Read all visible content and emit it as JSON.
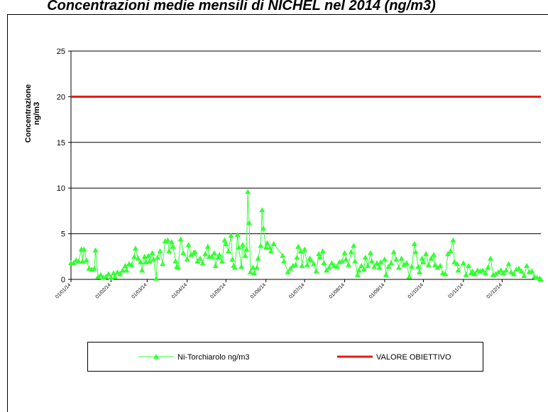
{
  "chart_data": {
    "type": "line",
    "title": "Concentrazioni medie mensili di NICHEL nel 2014 (ng/m3)",
    "ylabel": "Concentrazione ng/m3",
    "xlim": [
      "01/01/14",
      "31/12/14"
    ],
    "xticks": [
      "01/01/14",
      "01/02/14",
      "01/03/14",
      "01/04/14",
      "01/05/14",
      "01/06/14",
      "01/07/14",
      "01/08/14",
      "01/09/14",
      "01/10/14",
      "01/11/14",
      "01/12/14"
    ],
    "ylim": [
      0,
      25
    ],
    "yticks": [
      0,
      5,
      10,
      15,
      20,
      25
    ],
    "grid": true,
    "series": [
      {
        "name": "Ni-Torchiarolo ng/m3",
        "color": "#33ff33",
        "marker": "triangle",
        "x": [
          "01/01/14",
          "03/01/14",
          "05/01/14",
          "07/01/14",
          "09/01/14",
          "10/01/14",
          "11/01/14",
          "13/01/14",
          "15/01/14",
          "17/01/14",
          "19/01/14",
          "20/01/14",
          "22/01/14",
          "24/01/14",
          "26/01/14",
          "28/01/14",
          "30/01/14",
          "01/02/14",
          "03/02/14",
          "04/02/14",
          "06/02/14",
          "08/02/14",
          "10/02/14",
          "12/02/14",
          "13/02/14",
          "15/02/14",
          "17/02/14",
          "19/02/14",
          "20/02/14",
          "22/02/14",
          "24/02/14",
          "25/02/14",
          "27/02/14",
          "28/02/14",
          "02/03/14",
          "03/03/14",
          "05/03/14",
          "06/03/14",
          "08/03/14",
          "09/03/14",
          "11/03/14",
          "13/03/14",
          "15/03/14",
          "17/03/14",
          "18/03/14",
          "20/03/14",
          "21/03/14",
          "23/03/14",
          "24/03/14",
          "25/03/14",
          "27/03/14",
          "29/03/14",
          "01/04/14",
          "02/04/14",
          "04/04/14",
          "06/04/14",
          "07/04/14",
          "09/04/14",
          "11/04/14",
          "13/04/14",
          "15/04/14",
          "17/04/14",
          "18/04/14",
          "20/04/14",
          "22/04/14",
          "23/04/14",
          "25/04/14",
          "26/04/14",
          "28/04/14",
          "30/04/14",
          "01/05/14",
          "03/05/14",
          "05/05/14",
          "06/05/14",
          "07/05/14",
          "08/05/14",
          "10/05/14",
          "11/05/14",
          "13/05/14",
          "14/05/14",
          "16/05/14",
          "17/05/14",
          "18/05/14",
          "19/05/14",
          "20/05/14",
          "22/05/14",
          "23/05/14",
          "25/05/14",
          "26/05/14",
          "28/05/14",
          "29/05/14",
          "30/05/14",
          "01/06/14",
          "02/06/14",
          "04/06/14",
          "05/06/14",
          "07/06/14",
          "14/06/14",
          "15/06/14",
          "18/06/14",
          "20/06/14",
          "22/06/14",
          "24/06/14",
          "25/06/14",
          "26/06/14",
          "28/06/14",
          "29/06/14",
          "01/07/14",
          "03/07/14",
          "05/07/14",
          "06/07/14",
          "08/07/14",
          "10/07/14",
          "12/07/14",
          "13/07/14",
          "15/07/14",
          "16/07/14",
          "18/07/14",
          "20/07/14",
          "22/07/14",
          "24/07/14",
          "26/07/14",
          "28/07/14",
          "30/07/14",
          "01/08/14",
          "02/08/14",
          "04/08/14",
          "06/08/14",
          "08/08/14",
          "09/08/14",
          "11/08/14",
          "12/08/14",
          "14/08/14",
          "16/08/14",
          "17/08/14",
          "19/08/14",
          "21/08/14",
          "22/08/14",
          "24/08/14",
          "26/08/14",
          "28/08/14",
          "29/08/14",
          "01/09/14",
          "02/09/14",
          "04/09/14",
          "06/09/14",
          "08/09/14",
          "10/09/14",
          "12/09/14",
          "14/09/14",
          "16/09/14",
          "18/09/14",
          "20/09/14",
          "22/09/14",
          "24/09/14",
          "25/09/14",
          "27/09/14",
          "28/09/14",
          "30/09/14",
          "01/10/14",
          "03/10/14",
          "05/10/14",
          "07/10/14",
          "09/10/14",
          "10/10/14",
          "12/10/14",
          "14/10/14",
          "16/10/14",
          "18/10/14",
          "20/10/14",
          "22/10/14",
          "24/10/14",
          "25/10/14",
          "27/10/14",
          "28/10/14",
          "01/11/14",
          "03/11/14",
          "05/11/14",
          "07/11/14",
          "08/11/14",
          "10/11/14",
          "12/11/14",
          "14/11/14",
          "16/11/14",
          "18/11/14",
          "20/11/14",
          "22/11/14",
          "24/11/14",
          "26/11/14",
          "28/11/14",
          "30/11/14",
          "02/12/14",
          "04/12/14",
          "06/12/14",
          "08/12/14",
          "10/12/14",
          "12/12/14",
          "14/12/14",
          "16/12/14",
          "18/12/14",
          "20/12/14",
          "22/12/14",
          "24/12/14",
          "26/12/14",
          "28/12/14",
          "30/12/14",
          "31/12/14"
        ],
        "values": [
          1.8,
          1.8,
          2.1,
          2.0,
          3.3,
          2.0,
          3.3,
          2.1,
          1.2,
          1.1,
          1.2,
          3.2,
          0.3,
          0.5,
          0.2,
          0.3,
          0.6,
          0.2,
          0.7,
          0.3,
          0.8,
          0.6,
          1.0,
          1.5,
          1.0,
          1.7,
          1.6,
          2.5,
          3.4,
          2.3,
          1.9,
          1.0,
          2.5,
          1.9,
          2.6,
          2.0,
          2.9,
          2.2,
          0.1,
          2.4,
          3.1,
          1.7,
          4.2,
          4.3,
          3.1,
          4.1,
          3.6,
          2.0,
          1.4,
          1.3,
          4.4,
          2.9,
          2.2,
          3.8,
          2.7,
          2.9,
          3.0,
          2.0,
          2.3,
          1.8,
          2.8,
          3.6,
          2.5,
          2.5,
          2.9,
          1.5,
          2.4,
          2.7,
          2.0,
          4.3,
          3.9,
          3.1,
          4.8,
          2.2,
          1.5,
          1.3,
          4.9,
          3.5,
          1.4,
          3.8,
          2.6,
          3.3,
          9.6,
          6.2,
          0.8,
          1.3,
          0.7,
          1.3,
          2.3,
          3.7,
          7.6,
          5.6,
          3.5,
          4.0,
          3.5,
          3.1,
          3.9,
          2.6,
          2.0,
          0.8,
          1.2,
          1.5,
          1.6,
          2.4,
          3.6,
          3.1,
          1.5,
          3.3,
          1.6,
          2.3,
          2.1,
          1.7,
          0.9,
          2.8,
          2.4,
          3.1,
          1.8,
          1.0,
          1.3,
          1.8,
          1.5,
          1.4,
          1.9,
          2.0,
          2.9,
          2.2,
          1.6,
          3.0,
          3.7,
          2.0,
          0.5,
          1.0,
          1.5,
          1.1,
          2.4,
          1.5,
          2.9,
          2.0,
          1.4,
          1.8,
          1.3,
          1.9,
          2.2,
          0.5,
          1.4,
          1.8,
          3.0,
          2.2,
          1.3,
          2.3,
          1.6,
          1.8,
          0.3,
          1.4,
          3.9,
          3.0,
          1.4,
          0.8,
          2.3,
          1.9,
          2.8,
          1.6,
          2.3,
          2.7,
          1.6,
          1.3,
          1.5,
          0.7,
          0.6,
          2.8,
          3.1,
          4.3,
          1.9,
          1.7,
          1.0,
          1.8,
          0.5,
          1.5,
          0.7,
          0.9,
          0.6,
          1.0,
          0.9,
          1.0,
          0.7,
          1.3,
          2.3,
          0.5,
          0.6,
          0.8,
          1.0,
          0.7,
          1.0,
          1.7,
          0.8,
          0.6,
          1.1,
          1.2,
          0.9,
          0.4,
          1.5,
          0.8,
          0.9,
          0.3,
          0.2,
          0.1,
          0.0
        ]
      },
      {
        "name": "VALORE OBIETTIVO",
        "color": "#e8190f",
        "marker": "none",
        "x": [
          "01/01/14",
          "31/12/14"
        ],
        "values": [
          20,
          20
        ]
      }
    ]
  }
}
